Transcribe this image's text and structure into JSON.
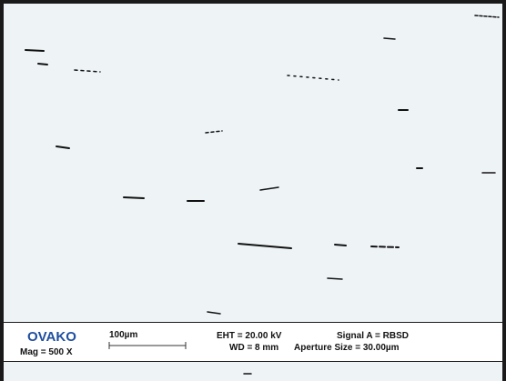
{
  "info_bar": {
    "logo": "OVAKO",
    "magnification": "Mag = 500 X",
    "scale_bar": "100µm",
    "eht": "EHT = 20.00 kV",
    "wd": "WD = 8 mm",
    "signal": "Signal A = RBSD",
    "aperture": "Aperture Size = 30.00µm"
  }
}
